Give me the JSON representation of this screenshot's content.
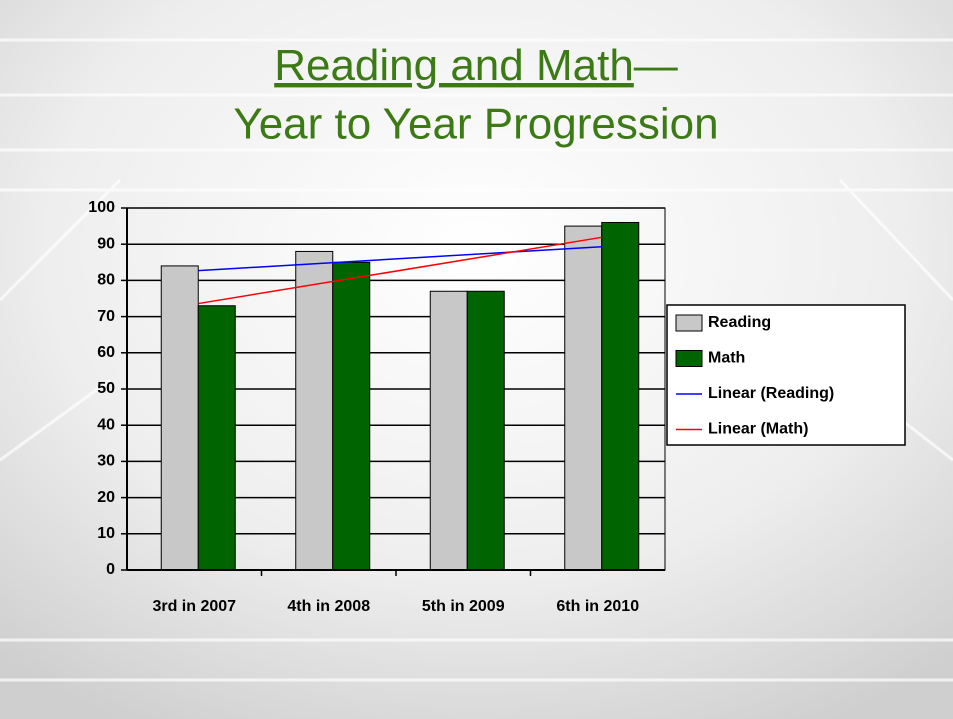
{
  "chart_data": {
    "type": "bar",
    "title": {
      "link": "Reading and Math",
      "rest": "—"
    },
    "subtitle": "Year to Year Progression",
    "categories": [
      "3rd in 2007",
      "4th in 2008",
      "5th in 2009",
      "6th in 2010"
    ],
    "series": [
      {
        "name": "Reading",
        "color": "#c8c8c8",
        "values": [
          84,
          88,
          77,
          95
        ]
      },
      {
        "name": "Math",
        "color": "#006400",
        "values": [
          73,
          85,
          77,
          96
        ]
      }
    ],
    "trendlines": [
      {
        "name": "Linear (Reading)",
        "color": "#0000ff"
      },
      {
        "name": "Linear (Math)",
        "color": "#ff0000"
      }
    ],
    "ylim": [
      0,
      100
    ],
    "yticks": [
      0,
      10,
      20,
      30,
      40,
      50,
      60,
      70,
      80,
      90,
      100
    ],
    "grid": true
  }
}
